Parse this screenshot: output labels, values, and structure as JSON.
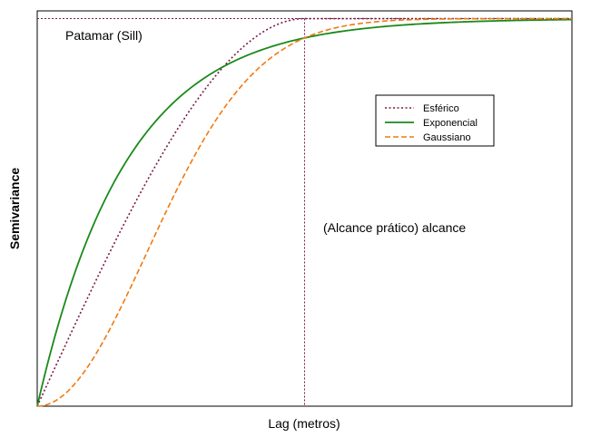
{
  "chart_data": {
    "type": "line",
    "xlabel": "Lag (metros)",
    "ylabel": "Semivariance",
    "xlim": [
      0,
      2
    ],
    "ylim": [
      0,
      1.02
    ],
    "sill": 1,
    "range": 1,
    "annotations": {
      "sill_label": "Patamar (Sill)",
      "range_label": "(Alcance prático) alcance"
    },
    "legend_position": "top-right",
    "series": [
      {
        "name": "Esférico",
        "model": "spherical",
        "color": "#7a1a4a",
        "dash": "dotted",
        "x": [
          0,
          0.1,
          0.2,
          0.3,
          0.4,
          0.5,
          0.6,
          0.7,
          0.8,
          0.9,
          1.0,
          1.2,
          1.4,
          1.6,
          1.8,
          2.0
        ],
        "values": [
          0,
          0.15,
          0.296,
          0.437,
          0.568,
          0.688,
          0.792,
          0.879,
          0.944,
          0.986,
          1,
          1,
          1,
          1,
          1,
          1
        ]
      },
      {
        "name": "Exponencial",
        "model": "exponential",
        "color": "#1a8a1a",
        "dash": "solid",
        "x": [
          0,
          0.1,
          0.2,
          0.3,
          0.4,
          0.5,
          0.6,
          0.7,
          0.8,
          0.9,
          1.0,
          1.2,
          1.4,
          1.6,
          1.8,
          2.0
        ],
        "values": [
          0,
          0.259,
          0.451,
          0.593,
          0.699,
          0.777,
          0.835,
          0.878,
          0.909,
          0.933,
          0.95,
          0.973,
          0.985,
          0.992,
          0.995,
          0.998
        ]
      },
      {
        "name": "Gaussiano",
        "model": "gaussian",
        "color": "#f07a10",
        "dash": "dashed",
        "x": [
          0,
          0.1,
          0.2,
          0.3,
          0.4,
          0.5,
          0.6,
          0.7,
          0.8,
          0.9,
          1.0,
          1.2,
          1.4,
          1.6,
          1.8,
          2.0
        ],
        "values": [
          0,
          0.03,
          0.113,
          0.237,
          0.381,
          0.528,
          0.661,
          0.771,
          0.853,
          0.912,
          0.95,
          0.987,
          0.997,
          1,
          1,
          1
        ]
      }
    ]
  },
  "colors": {
    "reference_lines": "#7a1a4a",
    "axis": "#000000"
  }
}
